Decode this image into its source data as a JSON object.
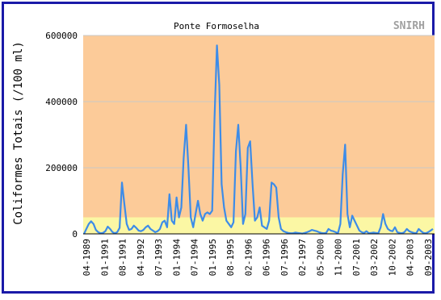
{
  "colors": {
    "frame": "#1a1aa8",
    "plot_bg": "#fccb99",
    "band_bg": "#fbf7a4",
    "line": "#3d8ce8",
    "gridline": "#c8c8c8",
    "logo": "#a0a0a0"
  },
  "logo": "SNIRH",
  "chart_data": {
    "type": "line",
    "title": "Ponte Formoselha",
    "xlabel": "",
    "ylabel": "Coliformes Totais (/100 ml)",
    "ylim": [
      0,
      600000
    ],
    "yticks": [
      0,
      200000,
      400000,
      600000
    ],
    "ytick_labels": [
      "0",
      "200000",
      "400000",
      "600000"
    ],
    "xticks": [
      "04-1989",
      "01-1991",
      "08-1991",
      "04-1992",
      "07-1993",
      "01-1994",
      "07-1994",
      "01-1995",
      "08-1995",
      "02-1996",
      "06-1996",
      "07-1996",
      "02-1997",
      "05-2000",
      "11-2000",
      "07-2001",
      "03-2002",
      "10-2002",
      "04-2003",
      "09-2003"
    ],
    "highlight_band": [
      0,
      50000
    ],
    "grid": true,
    "series": [
      {
        "values": [
          0,
          15000,
          30000,
          38000,
          30000,
          12000,
          5000,
          2000,
          3000,
          8000,
          22000,
          15000,
          5000,
          2000,
          5000,
          18000,
          155000,
          90000,
          30000,
          12000,
          15000,
          25000,
          18000,
          10000,
          8000,
          12000,
          20000,
          25000,
          15000,
          10000,
          5000,
          8000,
          15000,
          35000,
          40000,
          20000,
          120000,
          40000,
          30000,
          110000,
          50000,
          80000,
          230000,
          330000,
          200000,
          50000,
          20000,
          60000,
          100000,
          60000,
          40000,
          60000,
          65000,
          60000,
          70000,
          350000,
          570000,
          450000,
          150000,
          80000,
          40000,
          30000,
          20000,
          35000,
          250000,
          330000,
          200000,
          30000,
          60000,
          260000,
          280000,
          150000,
          40000,
          50000,
          80000,
          25000,
          20000,
          15000,
          40000,
          155000,
          150000,
          140000,
          50000,
          15000,
          8000,
          5000,
          3000,
          2000,
          2000,
          4000,
          3000,
          2000,
          1000,
          3000,
          5000,
          8000,
          12000,
          10000,
          8000,
          5000,
          3000,
          2000,
          3000,
          15000,
          10000,
          8000,
          5000,
          2000,
          30000,
          180000,
          270000,
          60000,
          20000,
          55000,
          40000,
          25000,
          10000,
          5000,
          3000,
          8000,
          2000,
          3000,
          4000,
          3000,
          2000,
          20000,
          60000,
          30000,
          15000,
          10000,
          8000,
          20000,
          5000,
          3000,
          2000,
          5000,
          15000,
          8000,
          5000,
          3000,
          2000,
          15000,
          8000,
          3000,
          2000,
          5000,
          10000,
          15000
        ]
      }
    ]
  }
}
